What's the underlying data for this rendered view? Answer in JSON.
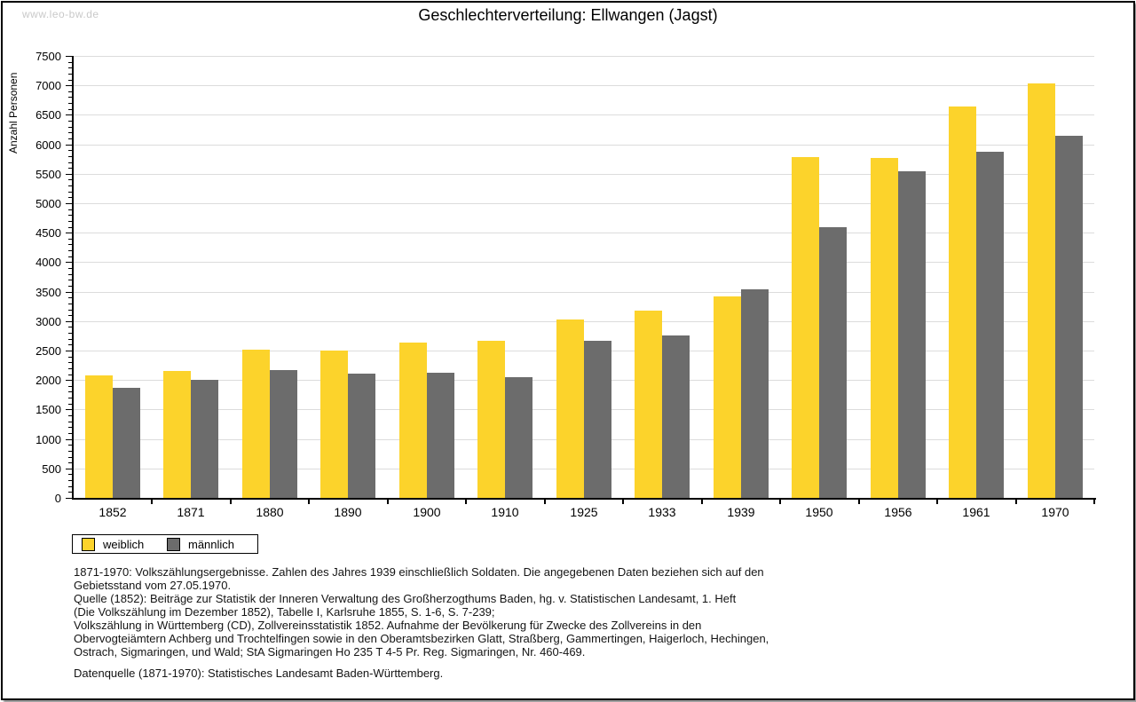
{
  "watermark": "www.leo-bw.de",
  "title": "Geschlechterverteilung: Ellwangen (Jagst)",
  "chart_data": {
    "type": "bar",
    "title": "Geschlechterverteilung: Ellwangen (Jagst)",
    "xlabel": "",
    "ylabel": "Anzahl Personen",
    "ylim": [
      0,
      7500
    ],
    "ytick_step": 500,
    "ytick_minor_step": 100,
    "grid": true,
    "legend_position": "bottom-left",
    "categories": [
      "1852",
      "1871",
      "1880",
      "1890",
      "1900",
      "1910",
      "1925",
      "1933",
      "1939",
      "1950",
      "1956",
      "1961",
      "1970"
    ],
    "series": [
      {
        "name": "weiblich",
        "color": "#FCD32B",
        "values": [
          2080,
          2160,
          2520,
          2500,
          2630,
          2670,
          3020,
          3180,
          3420,
          5790,
          5770,
          6640,
          7030
        ]
      },
      {
        "name": "männlich",
        "color": "#6C6C6C",
        "values": [
          1870,
          2000,
          2170,
          2110,
          2120,
          2050,
          2660,
          2760,
          3540,
          4600,
          5540,
          5880,
          6140
        ]
      }
    ]
  },
  "legend": {
    "items": [
      {
        "label": "weiblich",
        "color": "#FCD32B"
      },
      {
        "label": "männlich",
        "color": "#6C6C6C"
      }
    ]
  },
  "footnotes": {
    "lines": [
      "1871-1970: Volkszählungsergebnisse. Zahlen des Jahres 1939 einschließlich Soldaten. Die angegebenen Daten beziehen sich auf den",
      "Gebietsstand vom 27.05.1970.",
      "Quelle (1852): Beiträge zur Statistik der Inneren Verwaltung des Großherzogthums Baden, hg. v. Statistischen Landesamt, 1. Heft",
      "(Die Volkszählung im Dezember 1852), Tabelle I, Karlsruhe 1855, S. 1-6, S. 7-239;",
      "Volkszählung in Württemberg (CD), Zollvereinsstatistik 1852. Aufnahme der Bevölkerung für Zwecke des Zollvereins in den",
      "Obervogteiämtern Achberg und Trochtelfingen sowie in den Oberamtsbezirken Glatt, Straßberg, Gammertingen, Haigerloch, Hechingen,",
      "Ostrach, Sigmaringen, und Wald; StA Sigmaringen Ho 235 T 4-5 Pr. Reg. Sigmaringen, Nr. 460-469."
    ],
    "source_line": "Datenquelle (1871-1970): Statistisches Landesamt Baden-Württemberg."
  }
}
